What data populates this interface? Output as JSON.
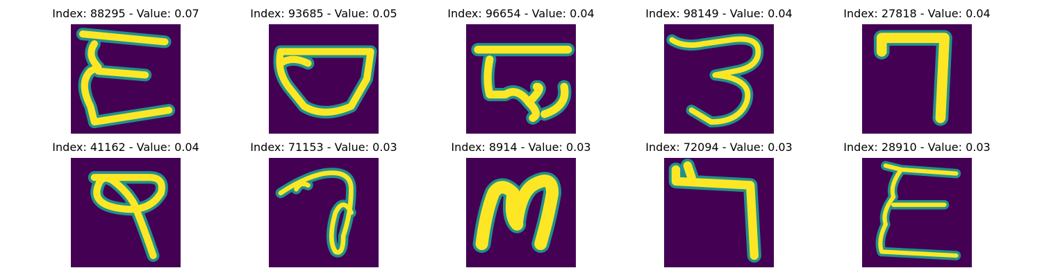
{
  "colors": {
    "background": "#440154",
    "stroke_outer": "#21918c",
    "stroke_mid": "#5ec962",
    "stroke_inner": "#fde725"
  },
  "panels": [
    {
      "title": "Index: 88295 - Value: 0.07"
    },
    {
      "title": "Index: 93685 - Value: 0.05"
    },
    {
      "title": "Index: 96654 - Value: 0.04"
    },
    {
      "title": "Index: 98149 - Value: 0.04"
    },
    {
      "title": "Index: 27818 - Value: 0.04"
    },
    {
      "title": "Index: 41162 - Value: 0.04"
    },
    {
      "title": "Index: 71153 - Value: 0.03"
    },
    {
      "title": "Index: 8914 - Value: 0.03"
    },
    {
      "title": "Index: 72094 - Value: 0.03"
    },
    {
      "title": "Index: 28910 - Value: 0.03"
    }
  ]
}
